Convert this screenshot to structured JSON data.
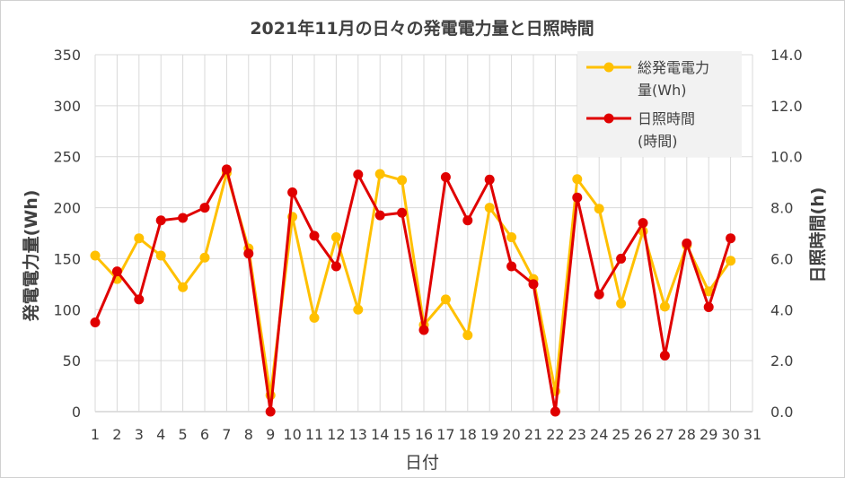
{
  "chart_data": {
    "type": "line",
    "title": "2021年11月の日々の発電電力量と日照時間",
    "xlabel": "日付",
    "ylabel_left": "発電電力量(Wh)",
    "ylabel_right": "日照時間(h)",
    "x_ticks": [
      "1",
      "2",
      "3",
      "4",
      "5",
      "6",
      "7",
      "8",
      "9",
      "10",
      "11",
      "12",
      "13",
      "14",
      "15",
      "16",
      "17",
      "18",
      "19",
      "20",
      "21",
      "22",
      "23",
      "24",
      "25",
      "26",
      "27",
      "28",
      "29",
      "30",
      "31"
    ],
    "y_left": {
      "min": 0,
      "max": 350,
      "step": 50,
      "tick_labels": [
        "0",
        "50",
        "100",
        "150",
        "200",
        "250",
        "300",
        "350"
      ]
    },
    "y_right": {
      "min": 0,
      "max": 14,
      "step": 2,
      "tick_labels": [
        "0.0",
        "2.0",
        "4.0",
        "6.0",
        "8.0",
        "10.0",
        "12.0",
        "14.0"
      ]
    },
    "grid": true,
    "legend_position": "top-right",
    "series": [
      {
        "name": "総発電電力量(Wh)",
        "legend_lines": [
          "総発電電力",
          "量(Wh)"
        ],
        "axis": "left",
        "color": "#FFC000",
        "x": [
          1,
          2,
          3,
          4,
          5,
          6,
          7,
          8,
          9,
          10,
          11,
          12,
          13,
          14,
          15,
          16,
          17,
          18,
          19,
          20,
          21,
          22,
          23,
          24,
          25,
          26,
          27,
          28,
          29,
          30
        ],
        "values": [
          153,
          130,
          170,
          153,
          122,
          151,
          234,
          160,
          16,
          191,
          92,
          171,
          100,
          233,
          227,
          85,
          110,
          75,
          200,
          171,
          130,
          20,
          228,
          199,
          106,
          177,
          103,
          163,
          118,
          148
        ]
      },
      {
        "name": "日照時間(時間)",
        "legend_lines": [
          "日照時間",
          "(時間)"
        ],
        "axis": "right",
        "color": "#E00000",
        "x": [
          1,
          2,
          3,
          4,
          5,
          6,
          7,
          8,
          9,
          10,
          11,
          12,
          13,
          14,
          15,
          16,
          17,
          18,
          19,
          20,
          21,
          22,
          23,
          24,
          25,
          26,
          27,
          28,
          29,
          30
        ],
        "values": [
          3.5,
          5.5,
          4.4,
          7.5,
          7.6,
          8.0,
          9.5,
          6.2,
          0.0,
          8.6,
          6.9,
          5.7,
          9.3,
          7.7,
          7.8,
          3.2,
          9.2,
          7.5,
          9.1,
          5.7,
          5.0,
          0.0,
          8.4,
          4.6,
          6.0,
          7.4,
          2.2,
          6.6,
          4.1,
          6.8
        ]
      }
    ]
  }
}
